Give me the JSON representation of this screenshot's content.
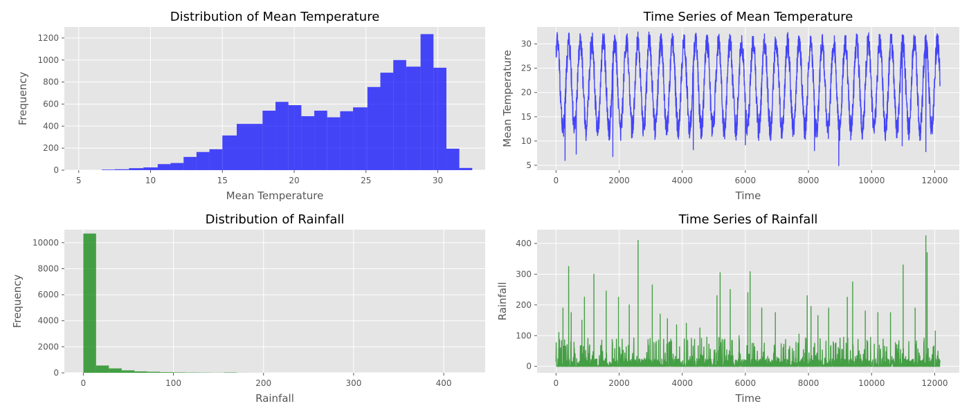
{
  "chart_data": [
    {
      "type": "bar",
      "title": "Distribution of Mean Temperature",
      "xlabel": "Mean Temperature",
      "ylabel": "Frequency",
      "xlim": [
        4,
        33.3
      ],
      "ylim": [
        0,
        1300
      ],
      "xticks": [
        5,
        10,
        15,
        20,
        25,
        30
      ],
      "yticks": [
        0,
        200,
        400,
        600,
        800,
        1000,
        1200
      ],
      "grid": true,
      "color": "#0000ff",
      "bins": [
        {
          "x0": 6.6,
          "x1": 7.5,
          "value": 5
        },
        {
          "x0": 7.5,
          "x1": 8.5,
          "value": 8
        },
        {
          "x0": 8.5,
          "x1": 9.5,
          "value": 18
        },
        {
          "x0": 9.5,
          "x1": 10.5,
          "value": 25
        },
        {
          "x0": 10.5,
          "x1": 11.4,
          "value": 55
        },
        {
          "x0": 11.4,
          "x1": 12.3,
          "value": 65
        },
        {
          "x0": 12.3,
          "x1": 13.2,
          "value": 120
        },
        {
          "x0": 13.2,
          "x1": 14.1,
          "value": 165
        },
        {
          "x0": 14.1,
          "x1": 15.0,
          "value": 190
        },
        {
          "x0": 15.0,
          "x1": 16.0,
          "value": 315
        },
        {
          "x0": 16.0,
          "x1": 17.8,
          "value": 420
        },
        {
          "x0": 17.8,
          "x1": 18.7,
          "value": 540
        },
        {
          "x0": 18.7,
          "x1": 19.6,
          "value": 620
        },
        {
          "x0": 19.6,
          "x1": 20.5,
          "value": 590
        },
        {
          "x0": 20.5,
          "x1": 21.4,
          "value": 490
        },
        {
          "x0": 21.4,
          "x1": 22.3,
          "value": 540
        },
        {
          "x0": 22.3,
          "x1": 23.2,
          "value": 480
        },
        {
          "x0": 23.2,
          "x1": 24.1,
          "value": 535
        },
        {
          "x0": 24.1,
          "x1": 25.1,
          "value": 570
        },
        {
          "x0": 25.1,
          "x1": 26.0,
          "value": 755
        },
        {
          "x0": 26.0,
          "x1": 26.9,
          "value": 885
        },
        {
          "x0": 26.9,
          "x1": 27.8,
          "value": 1000
        },
        {
          "x0": 27.8,
          "x1": 28.8,
          "value": 940
        },
        {
          "x0": 28.8,
          "x1": 29.7,
          "value": 1235
        },
        {
          "x0": 29.7,
          "x1": 30.6,
          "value": 930
        },
        {
          "x0": 30.6,
          "x1": 31.5,
          "value": 195
        },
        {
          "x0": 31.5,
          "x1": 32.4,
          "value": 20
        }
      ]
    },
    {
      "type": "line",
      "title": "Time Series of Mean Temperature",
      "xlabel": "Time",
      "ylabel": "Mean Temperature",
      "xlim": [
        -600,
        12780
      ],
      "ylim": [
        4,
        33.5
      ],
      "xticks": [
        0,
        2000,
        4000,
        6000,
        8000,
        10000,
        12000
      ],
      "yticks": [
        5,
        10,
        15,
        20,
        25,
        30
      ],
      "grid": true,
      "color": "#0000ff",
      "series_summary": {
        "n_points": 12170,
        "period": 365,
        "typical_min": 12,
        "typical_max": 31,
        "min": 5,
        "max": 32.5
      },
      "notable_lows": [
        {
          "x": 285,
          "value": 6
        },
        {
          "x": 640,
          "value": 7.3
        },
        {
          "x": 1800,
          "value": 6.8
        },
        {
          "x": 4350,
          "value": 8.2
        },
        {
          "x": 6000,
          "value": 9.2
        },
        {
          "x": 8190,
          "value": 8
        },
        {
          "x": 8960,
          "value": 4.9
        },
        {
          "x": 10970,
          "value": 9
        },
        {
          "x": 11720,
          "value": 7.8
        }
      ]
    },
    {
      "type": "bar",
      "title": "Distribution of Rainfall",
      "xlabel": "Rainfall",
      "ylabel": "Frequency",
      "xlim": [
        -21,
        446
      ],
      "ylim": [
        0,
        11000
      ],
      "xticks": [
        0,
        100,
        200,
        300,
        400
      ],
      "yticks": [
        0,
        2000,
        4000,
        6000,
        8000,
        10000
      ],
      "grid": true,
      "color": "#008000",
      "bins": [
        {
          "x0": 0,
          "x1": 14.2,
          "value": 10700
        },
        {
          "x0": 14.2,
          "x1": 28.4,
          "value": 560
        },
        {
          "x0": 28.4,
          "x1": 42.6,
          "value": 340
        },
        {
          "x0": 42.6,
          "x1": 56.8,
          "value": 190
        },
        {
          "x0": 56.8,
          "x1": 71.0,
          "value": 110
        },
        {
          "x0": 71.0,
          "x1": 85.2,
          "value": 80
        },
        {
          "x0": 85.2,
          "x1": 99.4,
          "value": 50
        },
        {
          "x0": 99.4,
          "x1": 113.6,
          "value": 35
        },
        {
          "x0": 113.6,
          "x1": 127.8,
          "value": 25
        },
        {
          "x0": 127.8,
          "x1": 142.0,
          "value": 20
        },
        {
          "x0": 142.0,
          "x1": 156.2,
          "value": 12
        },
        {
          "x0": 156.2,
          "x1": 170.4,
          "value": 30
        },
        {
          "x0": 170.4,
          "x1": 184.6,
          "value": 6
        },
        {
          "x0": 184.6,
          "x1": 198.8,
          "value": 4
        }
      ]
    },
    {
      "type": "line",
      "title": "Time Series of Rainfall",
      "xlabel": "Time",
      "ylabel": "Rainfall",
      "xlim": [
        -600,
        12780
      ],
      "ylim": [
        -21,
        445
      ],
      "xticks": [
        0,
        2000,
        4000,
        6000,
        8000,
        10000,
        12000
      ],
      "yticks": [
        0,
        100,
        200,
        300,
        400
      ],
      "grid": true,
      "color": "#008000",
      "series_summary": {
        "n_points": 12170,
        "baseline": 0,
        "max": 425
      },
      "notable_peaks": [
        {
          "x": 90,
          "value": 110
        },
        {
          "x": 220,
          "value": 190
        },
        {
          "x": 400,
          "value": 325
        },
        {
          "x": 480,
          "value": 175
        },
        {
          "x": 820,
          "value": 150
        },
        {
          "x": 900,
          "value": 225
        },
        {
          "x": 1200,
          "value": 300
        },
        {
          "x": 1590,
          "value": 245
        },
        {
          "x": 1980,
          "value": 225
        },
        {
          "x": 2320,
          "value": 200
        },
        {
          "x": 2600,
          "value": 410
        },
        {
          "x": 3050,
          "value": 265
        },
        {
          "x": 3300,
          "value": 170
        },
        {
          "x": 3530,
          "value": 155
        },
        {
          "x": 3820,
          "value": 135
        },
        {
          "x": 4130,
          "value": 140
        },
        {
          "x": 4560,
          "value": 125
        },
        {
          "x": 4780,
          "value": 95
        },
        {
          "x": 5100,
          "value": 230
        },
        {
          "x": 5200,
          "value": 305
        },
        {
          "x": 5520,
          "value": 250
        },
        {
          "x": 5800,
          "value": 100
        },
        {
          "x": 6080,
          "value": 240
        },
        {
          "x": 6150,
          "value": 308
        },
        {
          "x": 6520,
          "value": 190
        },
        {
          "x": 6950,
          "value": 175
        },
        {
          "x": 7700,
          "value": 105
        },
        {
          "x": 7960,
          "value": 230
        },
        {
          "x": 8080,
          "value": 195
        },
        {
          "x": 8300,
          "value": 165
        },
        {
          "x": 8640,
          "value": 190
        },
        {
          "x": 9230,
          "value": 225
        },
        {
          "x": 9400,
          "value": 275
        },
        {
          "x": 9800,
          "value": 180
        },
        {
          "x": 10200,
          "value": 175
        },
        {
          "x": 10600,
          "value": 175
        },
        {
          "x": 11000,
          "value": 330
        },
        {
          "x": 11380,
          "value": 190
        },
        {
          "x": 11720,
          "value": 425
        },
        {
          "x": 11760,
          "value": 370
        },
        {
          "x": 12020,
          "value": 115
        }
      ]
    }
  ]
}
